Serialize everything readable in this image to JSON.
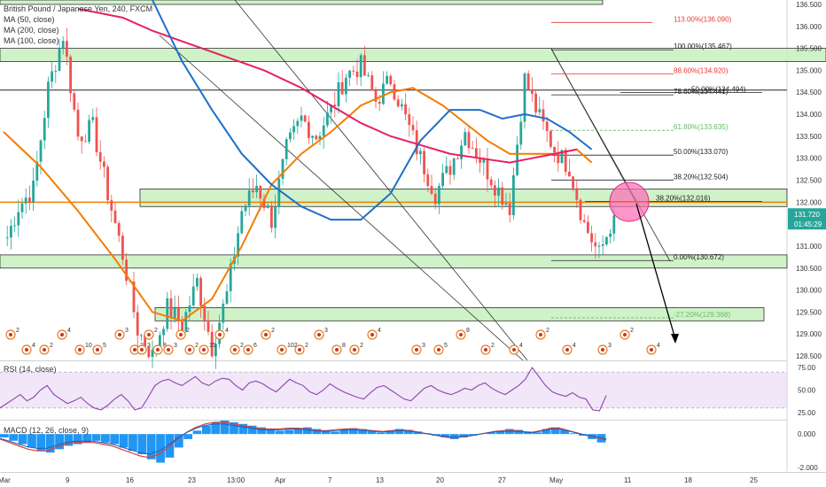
{
  "legend": {
    "title": "British Pound / Japanese Yen, 240, FXCM",
    "ma50": "MA (50, close)",
    "ma200": "MA (200, close)",
    "ma100": "MA (100, close)"
  },
  "rsi_label": "RSI (14, close)",
  "macd_label": "MACD (12, 26, close, 9)",
  "price_box": {
    "value": "131.720",
    "timer": "01:45:29"
  },
  "colors": {
    "candle_up": "#26a69a",
    "candle_down": "#ef5350",
    "zone_fill": "#c8f0c0",
    "zone_border": "#2f2f2f",
    "ma50": "#f57c00",
    "ma200": "#e91e63",
    "ma100": "#1e6fc8",
    "rsi": "#8e44ad",
    "macd_hist": "#2196f3",
    "fib_red": "#e53935",
    "fib_green": "#66bb6a",
    "circle": "#ff69b4"
  },
  "chart_data": [
    {
      "type": "candlestick",
      "title": "British Pound / Japanese Yen, 240, FXCM",
      "x_tick_labels": [
        "Mar",
        "9",
        "16",
        "23",
        "13:00",
        "Apr",
        "7",
        "13",
        "20",
        "27",
        "May",
        "11",
        "18",
        "25"
      ],
      "y_tick_labels": [
        "136.500",
        "136.000",
        "135.500",
        "135.000",
        "134.500",
        "134.000",
        "133.500",
        "133.000",
        "132.500",
        "132.000",
        "131.500",
        "131.000",
        "130.500",
        "130.000",
        "129.500",
        "129.000",
        "128.500"
      ],
      "ylim": [
        128.4,
        136.6
      ],
      "candles_approx": [
        [
          1,
          131.2
        ],
        [
          4,
          131.9
        ],
        [
          8,
          132.3
        ],
        [
          12,
          134.6
        ],
        [
          16,
          135.8
        ],
        [
          20,
          133.5
        ],
        [
          24,
          133.7
        ],
        [
          28,
          132.2
        ],
        [
          32,
          130.8
        ],
        [
          36,
          129.1
        ],
        [
          40,
          128.5
        ],
        [
          44,
          129.6
        ],
        [
          48,
          129.2
        ],
        [
          52,
          130.2
        ],
        [
          56,
          128.7
        ],
        [
          60,
          129.9
        ],
        [
          64,
          131.8
        ],
        [
          68,
          132.4
        ],
        [
          72,
          131.6
        ],
        [
          76,
          133.2
        ],
        [
          80,
          133.9
        ],
        [
          84,
          133.5
        ],
        [
          88,
          134.1
        ],
        [
          92,
          134.9
        ],
        [
          96,
          135.1
        ],
        [
          100,
          134.3
        ],
        [
          104,
          134.8
        ],
        [
          108,
          133.9
        ],
        [
          112,
          133.0
        ],
        [
          116,
          132.2
        ],
        [
          120,
          132.8
        ],
        [
          124,
          133.6
        ],
        [
          128,
          133.0
        ],
        [
          132,
          132.4
        ],
        [
          136,
          131.9
        ],
        [
          140,
          134.8
        ],
        [
          144,
          133.9
        ],
        [
          148,
          133.2
        ],
        [
          152,
          132.8
        ],
        [
          156,
          131.5
        ],
        [
          160,
          130.8
        ],
        [
          164,
          131.7
        ]
      ],
      "moving_averages": {
        "MA (50, close)": [
          [
            0,
            133.6
          ],
          [
            10,
            132.8
          ],
          [
            20,
            131.8
          ],
          [
            30,
            130.7
          ],
          [
            40,
            129.5
          ],
          [
            48,
            129.3
          ],
          [
            56,
            129.8
          ],
          [
            64,
            131.0
          ],
          [
            72,
            132.4
          ],
          [
            80,
            133.1
          ],
          [
            88,
            133.6
          ],
          [
            96,
            134.2
          ],
          [
            104,
            134.5
          ],
          [
            110,
            134.6
          ],
          [
            118,
            134.2
          ],
          [
            124,
            133.8
          ],
          [
            130,
            133.4
          ],
          [
            136,
            133.1
          ],
          [
            142,
            133.1
          ],
          [
            148,
            133.1
          ],
          [
            154,
            133.2
          ],
          [
            158,
            132.9
          ]
        ],
        "MA (200, close)": [
          [
            20,
            136.4
          ],
          [
            32,
            136.2
          ],
          [
            40,
            135.9
          ],
          [
            50,
            135.6
          ],
          [
            60,
            135.3
          ],
          [
            70,
            135.0
          ],
          [
            80,
            134.6
          ],
          [
            88,
            134.2
          ],
          [
            96,
            133.8
          ],
          [
            104,
            133.5
          ],
          [
            112,
            133.3
          ],
          [
            120,
            133.1
          ],
          [
            128,
            133.0
          ],
          [
            136,
            132.9
          ],
          [
            142,
            133.0
          ],
          [
            148,
            133.1
          ],
          [
            154,
            133.2
          ]
        ],
        "MA (100, close)": [
          [
            40,
            136.6
          ],
          [
            48,
            135.2
          ],
          [
            56,
            134.1
          ],
          [
            64,
            133.1
          ],
          [
            72,
            132.4
          ],
          [
            80,
            131.9
          ],
          [
            88,
            131.6
          ],
          [
            96,
            131.6
          ],
          [
            104,
            132.2
          ],
          [
            112,
            133.4
          ],
          [
            120,
            134.1
          ],
          [
            128,
            134.1
          ],
          [
            134,
            133.9
          ],
          [
            140,
            134.0
          ],
          [
            146,
            133.9
          ],
          [
            152,
            133.6
          ],
          [
            158,
            133.2
          ]
        ]
      },
      "zones": [
        [
          136.6,
          136.5
        ],
        [
          135.5,
          135.2
        ],
        [
          132.3,
          131.9
        ],
        [
          130.8,
          130.5
        ],
        [
          129.6,
          129.3
        ]
      ],
      "horizontal_levels": [
        134.55,
        132.0
      ],
      "fibonacci": [
        {
          "label": "113.00%(136.090)",
          "price": 136.09,
          "color": "red"
        },
        {
          "label": "100.00%(135.467)",
          "price": 135.467,
          "color": "black"
        },
        {
          "label": "88.60%(134.920)",
          "price": 134.92,
          "color": "red"
        },
        {
          "label": "78.60%(134.441)",
          "price": 134.441,
          "color": "black"
        },
        {
          "label": "50.00%(134.494)",
          "price": 134.494,
          "color": "black"
        },
        {
          "label": "61.80%(133.635)",
          "price": 133.635,
          "color": "green"
        },
        {
          "label": "50.00%(133.070)",
          "price": 133.07,
          "color": "black"
        },
        {
          "label": "38.20%(132.504)",
          "price": 132.504,
          "color": "black"
        },
        {
          "label": "38.20%(132.016)",
          "price": 132.016,
          "color": "black"
        },
        {
          "label": "0.00%(130.672)",
          "price": 130.672,
          "color": "black"
        },
        {
          "label": "-27.20%(129.368)",
          "price": 129.368,
          "color": "green"
        }
      ],
      "last_price": 131.72
    },
    {
      "type": "line",
      "title": "RSI (14, close)",
      "y_tick_labels": [
        "75.00",
        "50.00",
        "25.00"
      ],
      "ylim": [
        18,
        82
      ],
      "values": [
        30,
        35,
        40,
        45,
        38,
        42,
        50,
        55,
        45,
        40,
        35,
        38,
        42,
        35,
        30,
        28,
        33,
        40,
        45,
        38,
        28,
        30,
        42,
        55,
        60,
        62,
        58,
        55,
        60,
        65,
        58,
        55,
        60,
        63,
        62,
        55,
        50,
        58,
        60,
        57,
        52,
        48,
        55,
        62,
        58,
        55,
        48,
        45,
        50,
        57,
        52,
        48,
        45,
        42,
        40,
        47,
        53,
        55,
        50,
        45,
        40,
        38,
        45,
        52,
        55,
        50,
        47,
        45,
        48,
        52,
        50,
        55,
        58,
        52,
        48,
        45,
        50,
        55,
        62,
        75,
        65,
        55,
        48,
        45,
        43,
        47,
        42,
        40,
        28,
        27,
        44
      ]
    },
    {
      "type": "bar",
      "title": "MACD (12, 26, close, 9)",
      "y_tick_labels": [
        "0.000",
        "-2.000"
      ],
      "ylim": [
        -2.2,
        0.8
      ],
      "histogram": [
        -0.2,
        -0.4,
        -0.6,
        -0.8,
        -1.0,
        -1.1,
        -0.9,
        -0.7,
        -0.6,
        -0.5,
        -0.4,
        -0.5,
        -0.6,
        -0.8,
        -1.0,
        -1.2,
        -1.5,
        -1.7,
        -1.4,
        -0.8,
        -0.3,
        0.2,
        0.5,
        0.7,
        0.8,
        0.7,
        0.6,
        0.5,
        0.4,
        0.3,
        0.2,
        0.25,
        0.35,
        0.4,
        0.3,
        0.2,
        0.15,
        0.25,
        0.35,
        0.3,
        0.2,
        0.1,
        0.2,
        0.3,
        0.25,
        0.15,
        0.05,
        -0.1,
        -0.2,
        -0.3,
        -0.2,
        -0.1,
        0.0,
        0.1,
        0.2,
        0.3,
        0.25,
        0.15,
        0.1,
        0.3,
        0.4,
        0.25,
        0.05,
        -0.1,
        -0.3,
        -0.5
      ],
      "macd_line": [
        -0.3,
        -0.5,
        -0.7,
        -0.9,
        -1.0,
        -1.0,
        -0.8,
        -0.6,
        -0.5,
        -0.5,
        -0.5,
        -0.6,
        -0.7,
        -0.9,
        -1.1,
        -1.3,
        -1.4,
        -1.2,
        -0.8,
        -0.3,
        0.1,
        0.4,
        0.6,
        0.7,
        0.7,
        0.6,
        0.5,
        0.4,
        0.3,
        0.3,
        0.3,
        0.35,
        0.35,
        0.3,
        0.2,
        0.2,
        0.25,
        0.3,
        0.3,
        0.25,
        0.2,
        0.15,
        0.2,
        0.25,
        0.2,
        0.1,
        0.0,
        -0.1,
        -0.2,
        -0.2,
        -0.15,
        -0.05,
        0.05,
        0.15,
        0.2,
        0.2,
        0.15,
        0.1,
        0.2,
        0.35,
        0.35,
        0.2,
        0.05,
        -0.1,
        -0.2,
        -0.35
      ]
    }
  ],
  "icons": {
    "event_markers": "calendar-event-icon",
    "target_circle": "highlight-circle-icon"
  },
  "event_numbers": [
    "2",
    "4",
    "2",
    "4",
    "10",
    "5",
    "3",
    "2",
    "3",
    "2",
    "8",
    "3",
    "2",
    "2",
    "15",
    "4",
    "2",
    "6",
    "2",
    "102",
    "2",
    "3",
    "8",
    "2",
    "4",
    "3",
    "5",
    "8",
    "2",
    "4",
    "2",
    "4",
    "3",
    "2",
    "4"
  ]
}
